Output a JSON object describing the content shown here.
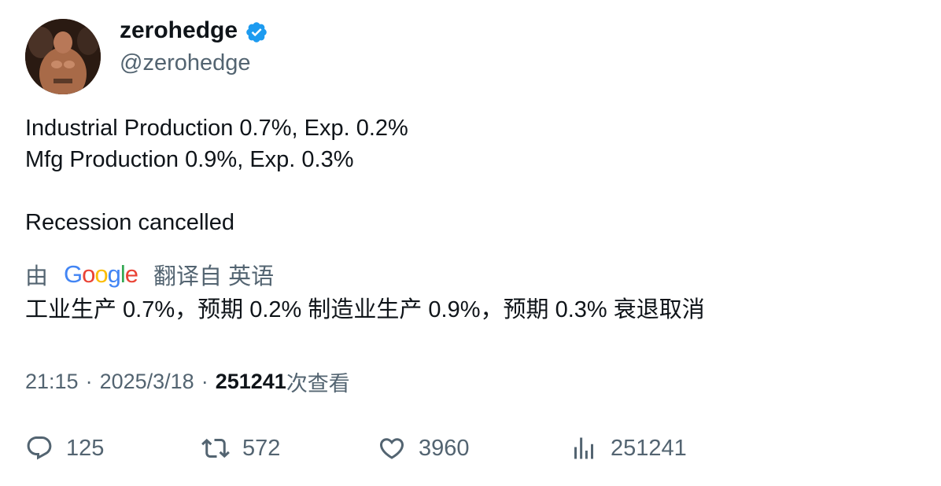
{
  "author": {
    "display_name": "zerohedge",
    "handle": "@zerohedge",
    "verified_color": "#1d9bf0"
  },
  "tweet": {
    "lines": [
      "Industrial Production 0.7%, Exp. 0.2%",
      "Mfg Production 0.9%, Exp. 0.3%",
      "Recession cancelled"
    ]
  },
  "translation": {
    "prefix": "由",
    "provider": "Google",
    "suffix": "翻译自 英语",
    "text": "工业生产 0.7%，预期 0.2% 制造业生产 0.9%，预期 0.3% 衰退取消"
  },
  "meta": {
    "time": "21:15",
    "separator": "·",
    "date": "2025/3/18",
    "views_count": "251241",
    "views_label": "次查看"
  },
  "actions": {
    "replies": "125",
    "retweets": "572",
    "likes": "3960",
    "views": "251241"
  },
  "icons": {
    "reply": "reply-icon",
    "retweet": "retweet-icon",
    "like": "like-icon",
    "views": "views-icon",
    "verified": "verified-badge-icon"
  }
}
